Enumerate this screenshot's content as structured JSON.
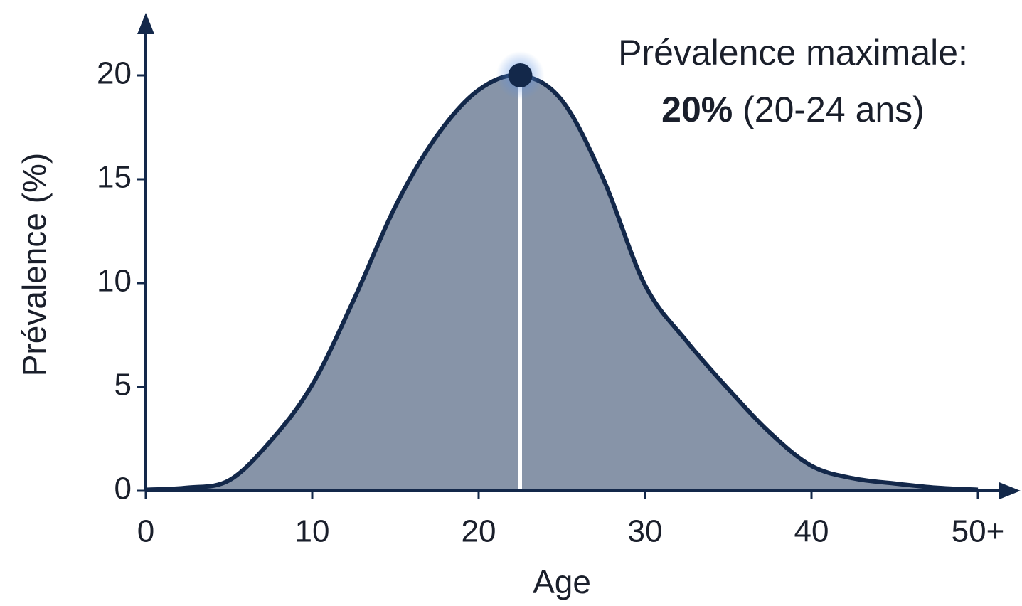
{
  "chart_data": {
    "type": "area",
    "x_label": "Age",
    "y_label": "Prévalence (%)",
    "annotation_line1": "Prévalence maximale:",
    "annotation_value": "20%",
    "annotation_range": "(20-24 ans)",
    "x": [
      0,
      2.5,
      5,
      7.5,
      10,
      12.5,
      15,
      17.5,
      20,
      22.5,
      25,
      27.5,
      30,
      32.5,
      35,
      37.5,
      40,
      42.5,
      45,
      47.5,
      50
    ],
    "values": [
      0.05,
      0.15,
      0.5,
      2.4,
      5.1,
      9.2,
      13.7,
      17.1,
      19.3,
      20,
      18.8,
      15,
      9.9,
      7.2,
      4.9,
      2.8,
      1.2,
      0.6,
      0.35,
      0.15,
      0.05
    ],
    "peak_index": 9,
    "color": "#13284a",
    "fill": "#8794a8",
    "xlim": [
      0,
      50
    ],
    "ylim": [
      0,
      20
    ],
    "xticks": [
      0,
      10,
      20,
      30,
      40,
      {
        "value": 50,
        "label": "50+"
      }
    ],
    "yticks": [
      0,
      5,
      10,
      15,
      20
    ]
  }
}
